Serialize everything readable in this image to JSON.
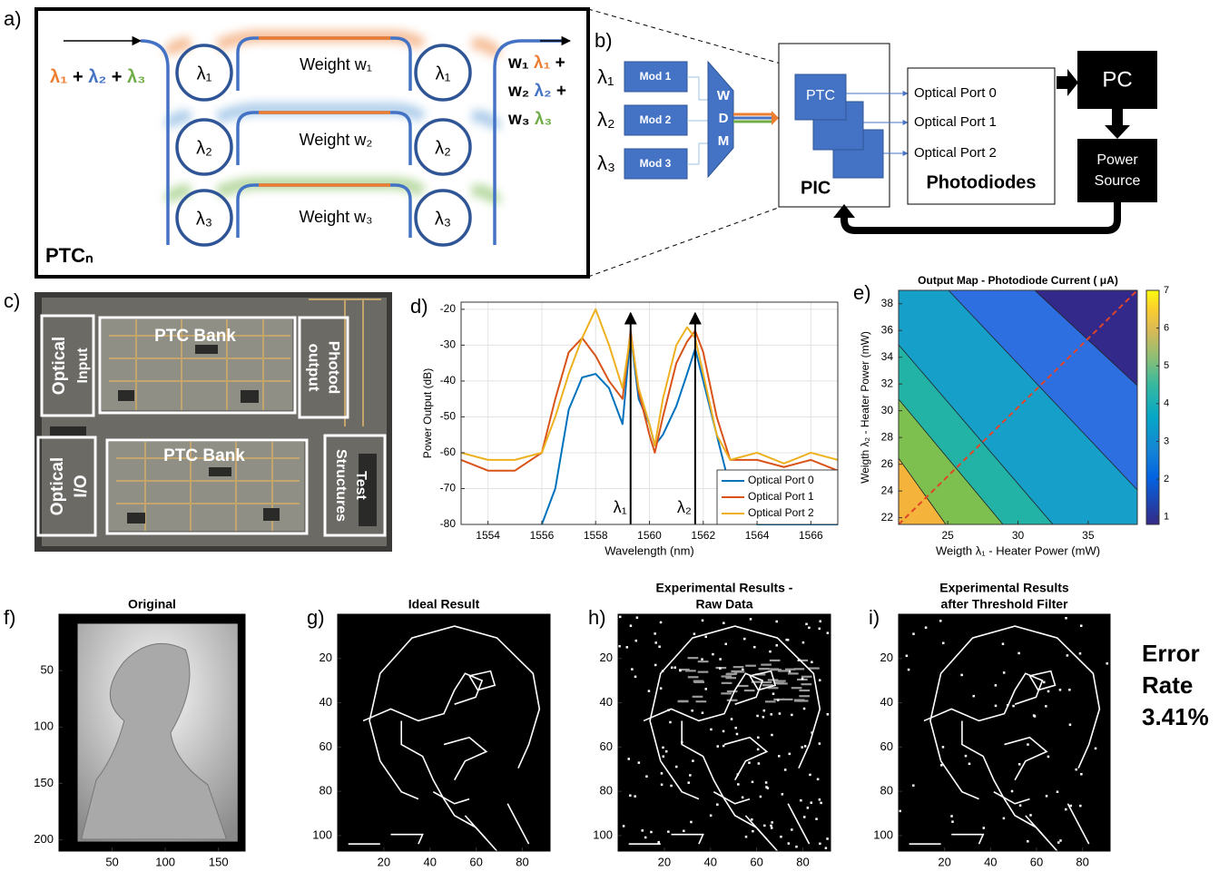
{
  "panel_a": {
    "label": "a)",
    "input_terms": [
      "λ₁",
      "+",
      "λ₂",
      "+",
      "λ₃"
    ],
    "name": "PTCₙ",
    "rows": [
      {
        "ring_left": "λ₁",
        "weight": "Weight w₁",
        "ring_right": "λ₁",
        "out_w": "w₁",
        "out_lambda": "λ₁",
        "out_op": "+"
      },
      {
        "ring_left": "λ₂",
        "weight": "Weight w₂",
        "ring_right": "λ₂",
        "out_w": "w₂",
        "out_lambda": "λ₂",
        "out_op": "+"
      },
      {
        "ring_left": "λ₃",
        "weight": "Weight w₃",
        "ring_right": "λ₃",
        "out_w": "w₃",
        "out_lambda": "λ₃"
      }
    ]
  },
  "panel_b": {
    "label": "b)",
    "inputs": [
      "λ₁",
      "λ₂",
      "λ₃"
    ],
    "mods": [
      "Mod 1",
      "Mod 2",
      "Mod 3"
    ],
    "wdm": [
      "W",
      "D",
      "M"
    ],
    "ptc": "PTC",
    "pic": "PIC",
    "ports": [
      "Optical Port 0",
      "Optical Port 1",
      "Optical Port 2"
    ],
    "photodiodes": "Photodiodes",
    "pc": "PC",
    "power_source": [
      "Power",
      "Source"
    ]
  },
  "panel_c": {
    "label": "c)",
    "regions": [
      {
        "lines": [
          "Optical",
          "Input"
        ]
      },
      {
        "lines": [
          "PTC Bank"
        ]
      },
      {
        "lines": [
          "Photod",
          "output"
        ]
      },
      {
        "lines": [
          "Optical",
          "I/O"
        ]
      },
      {
        "lines": [
          "PTC Bank"
        ]
      },
      {
        "lines": [
          "Test",
          "Structures"
        ]
      }
    ]
  },
  "chart_data": [
    {
      "type": "line",
      "panel_label": "d)",
      "xlabel": "Wavelength (nm)",
      "ylabel": "Power Output (dB)",
      "x": [
        1553,
        1554,
        1555,
        1556,
        1556.5,
        1557,
        1557.5,
        1558,
        1558.5,
        1559,
        1559.3,
        1559.6,
        1560,
        1560.2,
        1560.5,
        1561,
        1561.4,
        1561.7,
        1562,
        1562.5,
        1563,
        1564,
        1565,
        1566,
        1567
      ],
      "series": [
        {
          "name": "Optical Port 0",
          "color": "#0072bd",
          "values": [
            null,
            null,
            null,
            -80,
            -70,
            -48,
            -39,
            -38,
            -42,
            -52,
            -27,
            -45,
            -52,
            -58,
            -55,
            -47,
            -38,
            -31,
            -40,
            -55,
            -70,
            -80,
            -80,
            -80,
            -80
          ]
        },
        {
          "name": "Optical Port 1",
          "color": "#d95319",
          "values": [
            -62,
            -65,
            -65,
            -60,
            -45,
            -32,
            -28,
            -33,
            -40,
            -45,
            -26,
            -43,
            -55,
            -60,
            -50,
            -35,
            -29,
            -26,
            -32,
            -50,
            -62,
            -62,
            -64,
            -62,
            -65
          ]
        },
        {
          "name": "Optical Port 2",
          "color": "#edb120",
          "values": [
            -60,
            -62,
            -62,
            -60,
            -50,
            -38,
            -28,
            -20,
            -30,
            -42,
            -27,
            -42,
            -52,
            -58,
            -45,
            -30,
            -25,
            -28,
            -38,
            -55,
            -62,
            -60,
            -63,
            -60,
            -62
          ]
        }
      ],
      "xlim": [
        1553,
        1567
      ],
      "xticks": [
        1554,
        1556,
        1558,
        1560,
        1562,
        1564,
        1566
      ],
      "ylim": [
        -80,
        -18
      ],
      "yticks": [
        -80,
        -70,
        -60,
        -50,
        -40,
        -30,
        -20
      ],
      "grid": true,
      "legend": "lower right",
      "annotations": [
        {
          "text": "λ₁",
          "x": 1559.3
        },
        {
          "text": "λ₂",
          "x": 1561.7
        }
      ]
    },
    {
      "type": "contour",
      "panel_label": "e)",
      "title": "Output Map - Photodiode Current ( μA)",
      "xlabel": "Weigth λ₁ - Heater Power (mW)",
      "ylabel": "Weigth λ₂ - Heater Power (mW)",
      "xlim": [
        21.5,
        38.5
      ],
      "xticks": [
        25,
        30,
        35
      ],
      "ylim": [
        21.5,
        39
      ],
      "yticks": [
        22,
        24,
        26,
        28,
        30,
        32,
        34,
        36,
        38
      ],
      "clim": [
        0.8,
        7
      ],
      "cticks": [
        1,
        2,
        3,
        4,
        5,
        6,
        7
      ]
    },
    {
      "type": "image",
      "panel_label": "f)",
      "title": "Original",
      "xlim": [
        0,
        175
      ],
      "xticks": [
        50,
        100,
        150
      ],
      "ylim": [
        210,
        0
      ],
      "yticks": [
        50,
        100,
        150,
        200
      ]
    },
    {
      "type": "image",
      "panel_label": "g)",
      "title": "Ideal Result",
      "xlim": [
        0,
        92
      ],
      "xticks": [
        20,
        40,
        60,
        80
      ],
      "ylim": [
        107,
        0
      ],
      "yticks": [
        20,
        40,
        60,
        80,
        100
      ]
    },
    {
      "type": "image",
      "panel_label": "h)",
      "title": [
        "Experimental Results -",
        "Raw Data"
      ],
      "xlim": [
        0,
        92
      ],
      "xticks": [
        20,
        40,
        60,
        80
      ],
      "ylim": [
        107,
        0
      ],
      "yticks": [
        20,
        40,
        60,
        80,
        100
      ]
    },
    {
      "type": "image",
      "panel_label": "i)",
      "title": [
        "Experimental Results",
        "after Threshold Filter"
      ],
      "xlim": [
        0,
        92
      ],
      "xticks": [
        20,
        40,
        60,
        80
      ],
      "ylim": [
        107,
        0
      ],
      "yticks": [
        20,
        40,
        60,
        80,
        100
      ],
      "annotation": [
        "Error",
        "Rate",
        "3.41%"
      ]
    }
  ]
}
